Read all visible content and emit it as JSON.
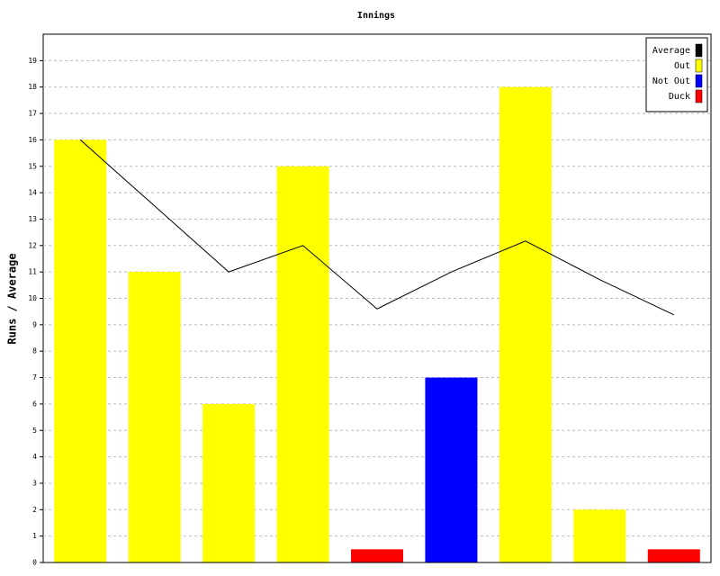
{
  "chart_data": {
    "type": "bar",
    "title": "Innings",
    "y_label": "Runs / Average",
    "categories": [
      null,
      null,
      null,
      null,
      null,
      null,
      null,
      null,
      null
    ],
    "series": [
      {
        "name": "Average",
        "type": "line",
        "color": "#000000",
        "values": [
          16,
          13.5,
          11,
          12,
          9.6,
          11,
          12.17,
          10.71,
          9.375
        ]
      },
      {
        "name": "Out",
        "color": "#ffff00",
        "values": [
          16,
          11,
          6,
          15,
          null,
          null,
          18,
          2,
          null
        ]
      },
      {
        "name": "Not Out",
        "color": "#0000ff",
        "values": [
          null,
          null,
          null,
          null,
          null,
          7,
          null,
          null,
          null
        ]
      },
      {
        "name": "Duck",
        "color": "#ff0000",
        "values": [
          null,
          null,
          null,
          null,
          0.5,
          null,
          null,
          null,
          0.5
        ]
      }
    ],
    "ylim": [
      0,
      20
    ],
    "yticks": [
      0,
      1,
      2,
      3,
      4,
      5,
      6,
      7,
      8,
      9,
      10,
      11,
      12,
      13,
      14,
      15,
      16,
      17,
      18,
      19
    ],
    "grid": true,
    "legend": "top-right"
  }
}
